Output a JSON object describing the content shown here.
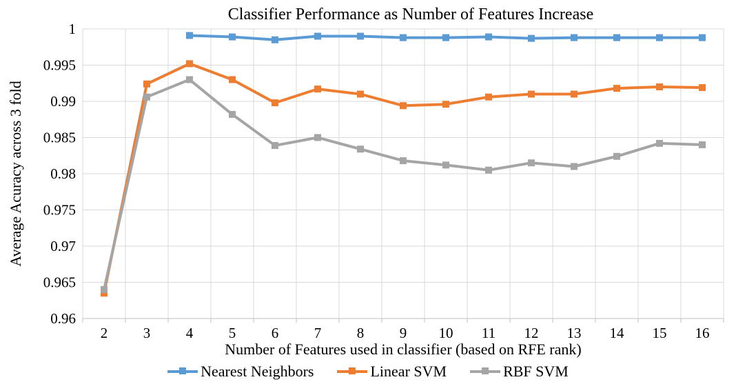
{
  "chart_data": {
    "type": "line",
    "title": "Classifier Performance as Number of Features Increase",
    "xlabel": "Number of Features used in classifier (based on RFE rank)",
    "ylabel": "Average Acuracy across 3 fold",
    "categories": [
      "2",
      "3",
      "4",
      "5",
      "6",
      "7",
      "8",
      "9",
      "10",
      "11",
      "12",
      "13",
      "14",
      "15",
      "16"
    ],
    "ylim": [
      0.96,
      1
    ],
    "yticks": [
      "0.96",
      "0.965",
      "0.97",
      "0.975",
      "0.98",
      "0.985",
      "0.99",
      "0.995",
      "1"
    ],
    "grid": true,
    "legend_position": "bottom",
    "series": [
      {
        "name": "Nearest Neighbors",
        "color": "#5B9BD5",
        "values": [
          null,
          null,
          0.9991,
          0.9989,
          0.9985,
          0.999,
          0.999,
          0.9988,
          0.9988,
          0.9989,
          0.9987,
          0.9988,
          0.9988,
          0.9988,
          0.9988
        ]
      },
      {
        "name": "Linear SVM",
        "color": "#ED7D31",
        "values": [
          0.9635,
          0.9924,
          0.9952,
          0.993,
          0.9898,
          0.9917,
          0.991,
          0.9894,
          0.9896,
          0.9906,
          0.991,
          0.991,
          0.9918,
          0.992,
          0.9919
        ]
      },
      {
        "name": "RBF SVM",
        "color": "#A5A5A5",
        "values": [
          0.964,
          0.9906,
          0.993,
          0.9882,
          0.9839,
          0.985,
          0.9834,
          0.9818,
          0.9812,
          0.9805,
          0.9815,
          0.981,
          0.9824,
          0.9842,
          0.984
        ]
      }
    ]
  }
}
